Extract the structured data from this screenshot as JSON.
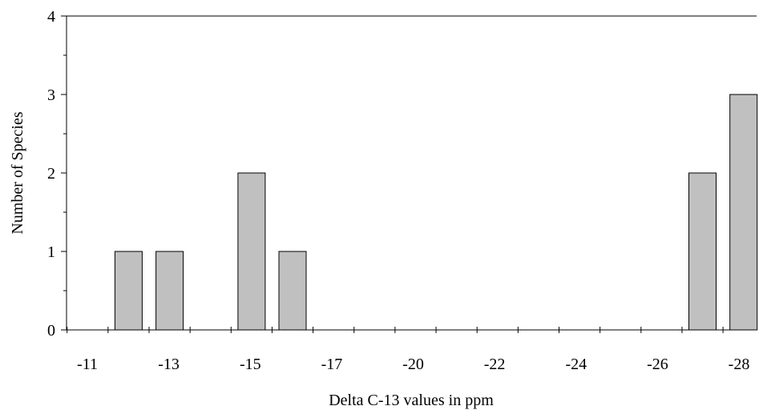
{
  "chart_data": {
    "type": "bar",
    "title": "",
    "xlabel": "Delta C-13 values in ppm",
    "ylabel": "Number of Species",
    "ylim": [
      0,
      4
    ],
    "y_ticks": [
      "0",
      "1",
      "2",
      "3",
      "4"
    ],
    "x_tick_labels": [
      "-11",
      "-13",
      "-15",
      "-17",
      "-20",
      "-22",
      "-24",
      "-26",
      "-28"
    ],
    "grid": false,
    "legend": "none",
    "bar_color": "#c0c0c0",
    "categories": [
      "-11",
      "-12",
      "-13",
      "-14",
      "-15",
      "-16",
      "-17",
      "-18",
      "-19",
      "-20",
      "-21",
      "-22",
      "-23",
      "-24",
      "-25",
      "-26",
      "-27",
      "-28"
    ],
    "values": [
      0,
      1,
      1,
      0,
      2,
      1,
      0,
      0,
      0,
      0,
      0,
      0,
      0,
      0,
      0,
      2,
      3,
      3
    ]
  }
}
